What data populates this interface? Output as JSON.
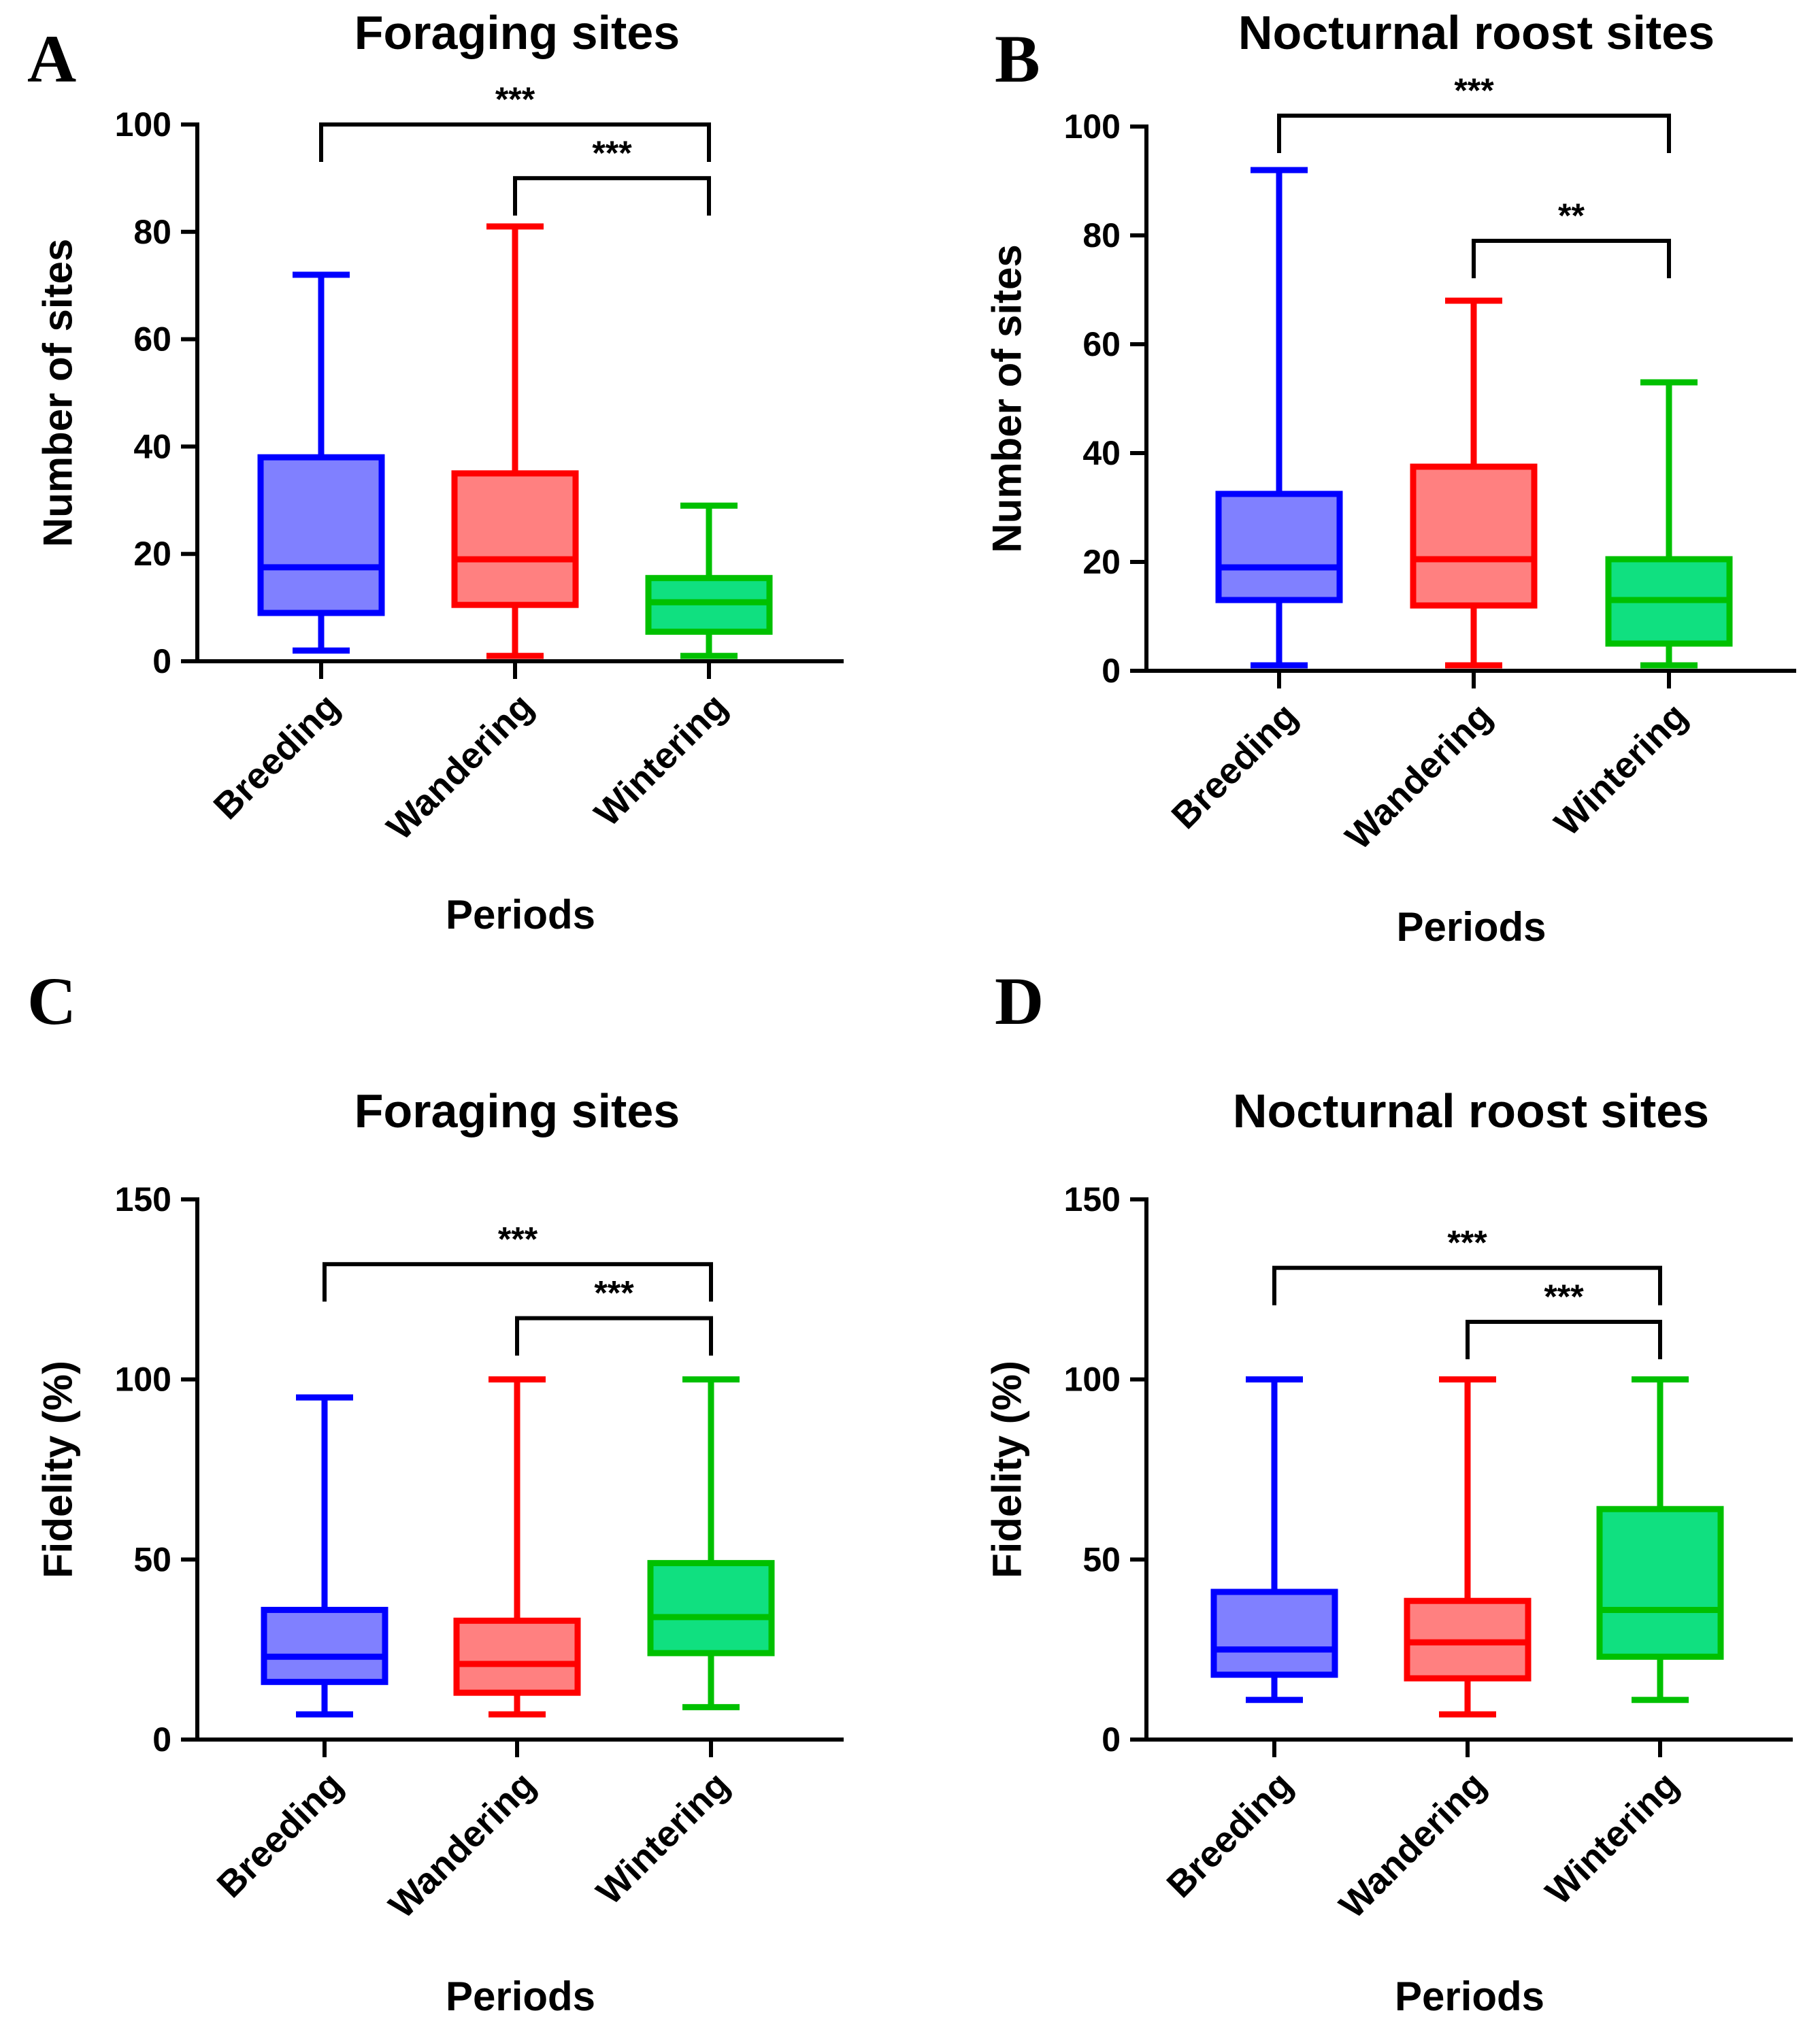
{
  "chart_data": [
    {
      "panel": "A",
      "type": "box",
      "title": "Foraging sites",
      "xlabel": "Periods",
      "ylabel": "Number of sites",
      "ylim": [
        0,
        100
      ],
      "yticks": [
        0,
        20,
        40,
        60,
        80,
        100
      ],
      "categories": [
        "Breeding",
        "Wandering",
        "Wintering"
      ],
      "boxes": [
        {
          "category": "Breeding",
          "min": 2,
          "q1": 9,
          "median": 17.5,
          "q3": 38,
          "max": 72,
          "color": "#0000ff",
          "fill": "#8080ff"
        },
        {
          "category": "Wandering",
          "min": 1,
          "q1": 10.5,
          "median": 19,
          "q3": 35,
          "max": 81,
          "color": "#ff0000",
          "fill": "#ff8080"
        },
        {
          "category": "Wintering",
          "min": 1,
          "q1": 5.5,
          "median": 11,
          "q3": 15.5,
          "max": 29,
          "color": "#00c000",
          "fill": "#10e080"
        }
      ],
      "significance": [
        {
          "from": "Breeding",
          "to": "Wintering",
          "label": "***",
          "level": 100
        },
        {
          "from": "Wandering",
          "to": "Wintering",
          "label": "***",
          "level": 90
        }
      ]
    },
    {
      "panel": "B",
      "type": "box",
      "title": "Nocturnal roost sites",
      "xlabel": "Periods",
      "ylabel": "Number of sites",
      "ylim": [
        0,
        100
      ],
      "yticks": [
        0,
        20,
        40,
        60,
        80,
        100
      ],
      "categories": [
        "Breeding",
        "Wandering",
        "Wintering"
      ],
      "boxes": [
        {
          "category": "Breeding",
          "min": 1,
          "q1": 13,
          "median": 19,
          "q3": 32.5,
          "max": 92,
          "color": "#0000ff",
          "fill": "#8080ff"
        },
        {
          "category": "Wandering",
          "min": 1,
          "q1": 12,
          "median": 20.5,
          "q3": 37.5,
          "max": 68,
          "color": "#ff0000",
          "fill": "#ff8080"
        },
        {
          "category": "Wintering",
          "min": 1,
          "q1": 5,
          "median": 13,
          "q3": 20.5,
          "max": 53,
          "color": "#00c000",
          "fill": "#10e080"
        }
      ],
      "significance": [
        {
          "from": "Breeding",
          "to": "Wintering",
          "label": "***",
          "level": 102
        },
        {
          "from": "Wandering",
          "to": "Wintering",
          "label": "**",
          "level": 79
        }
      ]
    },
    {
      "panel": "C",
      "type": "box",
      "title": "Foraging sites",
      "xlabel": "Periods",
      "ylabel": "Fidelity (%)",
      "ylim": [
        0,
        150
      ],
      "yticks": [
        0,
        50,
        100,
        150
      ],
      "categories": [
        "Breeding",
        "Wandering",
        "Wintering"
      ],
      "boxes": [
        {
          "category": "Breeding",
          "min": 7,
          "q1": 16,
          "median": 23,
          "q3": 36,
          "max": 95,
          "color": "#0000ff",
          "fill": "#8080ff"
        },
        {
          "category": "Wandering",
          "min": 7,
          "q1": 13,
          "median": 21,
          "q3": 33,
          "max": 100,
          "color": "#ff0000",
          "fill": "#ff8080"
        },
        {
          "category": "Wintering",
          "min": 9,
          "q1": 24,
          "median": 34,
          "q3": 49,
          "max": 100,
          "color": "#00c000",
          "fill": "#10e080"
        }
      ],
      "significance": [
        {
          "from": "Breeding",
          "to": "Wintering",
          "label": "***",
          "level": 132
        },
        {
          "from": "Wandering",
          "to": "Wintering",
          "label": "***",
          "level": 117
        }
      ]
    },
    {
      "panel": "D",
      "type": "box",
      "title": "Nocturnal roost sites",
      "xlabel": "Periods",
      "ylabel": "Fidelity (%)",
      "ylim": [
        0,
        150
      ],
      "yticks": [
        0,
        50,
        100,
        150
      ],
      "categories": [
        "Breeding",
        "Wandering",
        "Wintering"
      ],
      "boxes": [
        {
          "category": "Breeding",
          "min": 11,
          "q1": 18,
          "median": 25,
          "q3": 41,
          "max": 100,
          "color": "#0000ff",
          "fill": "#8080ff"
        },
        {
          "category": "Wandering",
          "min": 7,
          "q1": 17,
          "median": 27,
          "q3": 38.5,
          "max": 100,
          "color": "#ff0000",
          "fill": "#ff8080"
        },
        {
          "category": "Wintering",
          "min": 11,
          "q1": 23,
          "median": 36,
          "q3": 64,
          "max": 100,
          "color": "#00c000",
          "fill": "#10e080"
        }
      ],
      "significance": [
        {
          "from": "Breeding",
          "to": "Wintering",
          "label": "***",
          "level": 131
        },
        {
          "from": "Wandering",
          "to": "Wintering",
          "label": "***",
          "level": 116
        }
      ]
    }
  ]
}
